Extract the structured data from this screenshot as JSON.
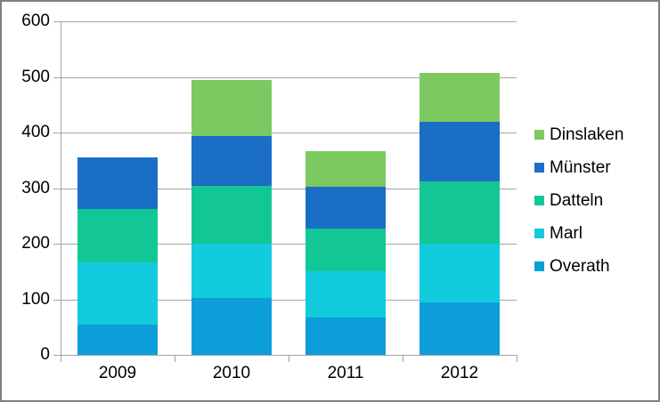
{
  "chart_data": {
    "type": "bar",
    "stacked": true,
    "title": "",
    "xlabel": "",
    "ylabel": "",
    "categories": [
      "2009",
      "2010",
      "2011",
      "2012"
    ],
    "series": [
      {
        "name": "Overath",
        "color": "#0c9ed9",
        "values": [
          55,
          103,
          67,
          95
        ]
      },
      {
        "name": "Marl",
        "color": "#12cbdd",
        "values": [
          112,
          97,
          83,
          105
        ]
      },
      {
        "name": "Datteln",
        "color": "#12c795",
        "values": [
          95,
          104,
          77,
          112
        ]
      },
      {
        "name": "Münster",
        "color": "#1a6ec6",
        "values": [
          93,
          89,
          76,
          108
        ]
      },
      {
        "name": "Dinslaken",
        "color": "#7cc961",
        "values": [
          0,
          102,
          63,
          87
        ]
      }
    ],
    "legend_order": [
      "Dinslaken",
      "Münster",
      "Datteln",
      "Marl",
      "Overath"
    ],
    "legend_position": "right",
    "ylim": [
      0,
      600
    ],
    "y_ticks": [
      0,
      100,
      200,
      300,
      400,
      500,
      600
    ],
    "grid": true
  },
  "frame": {
    "background": "#ffffff",
    "border_color": "#7f7f7f",
    "grid_color": "#a3a3a3",
    "text_color": "#000000"
  }
}
